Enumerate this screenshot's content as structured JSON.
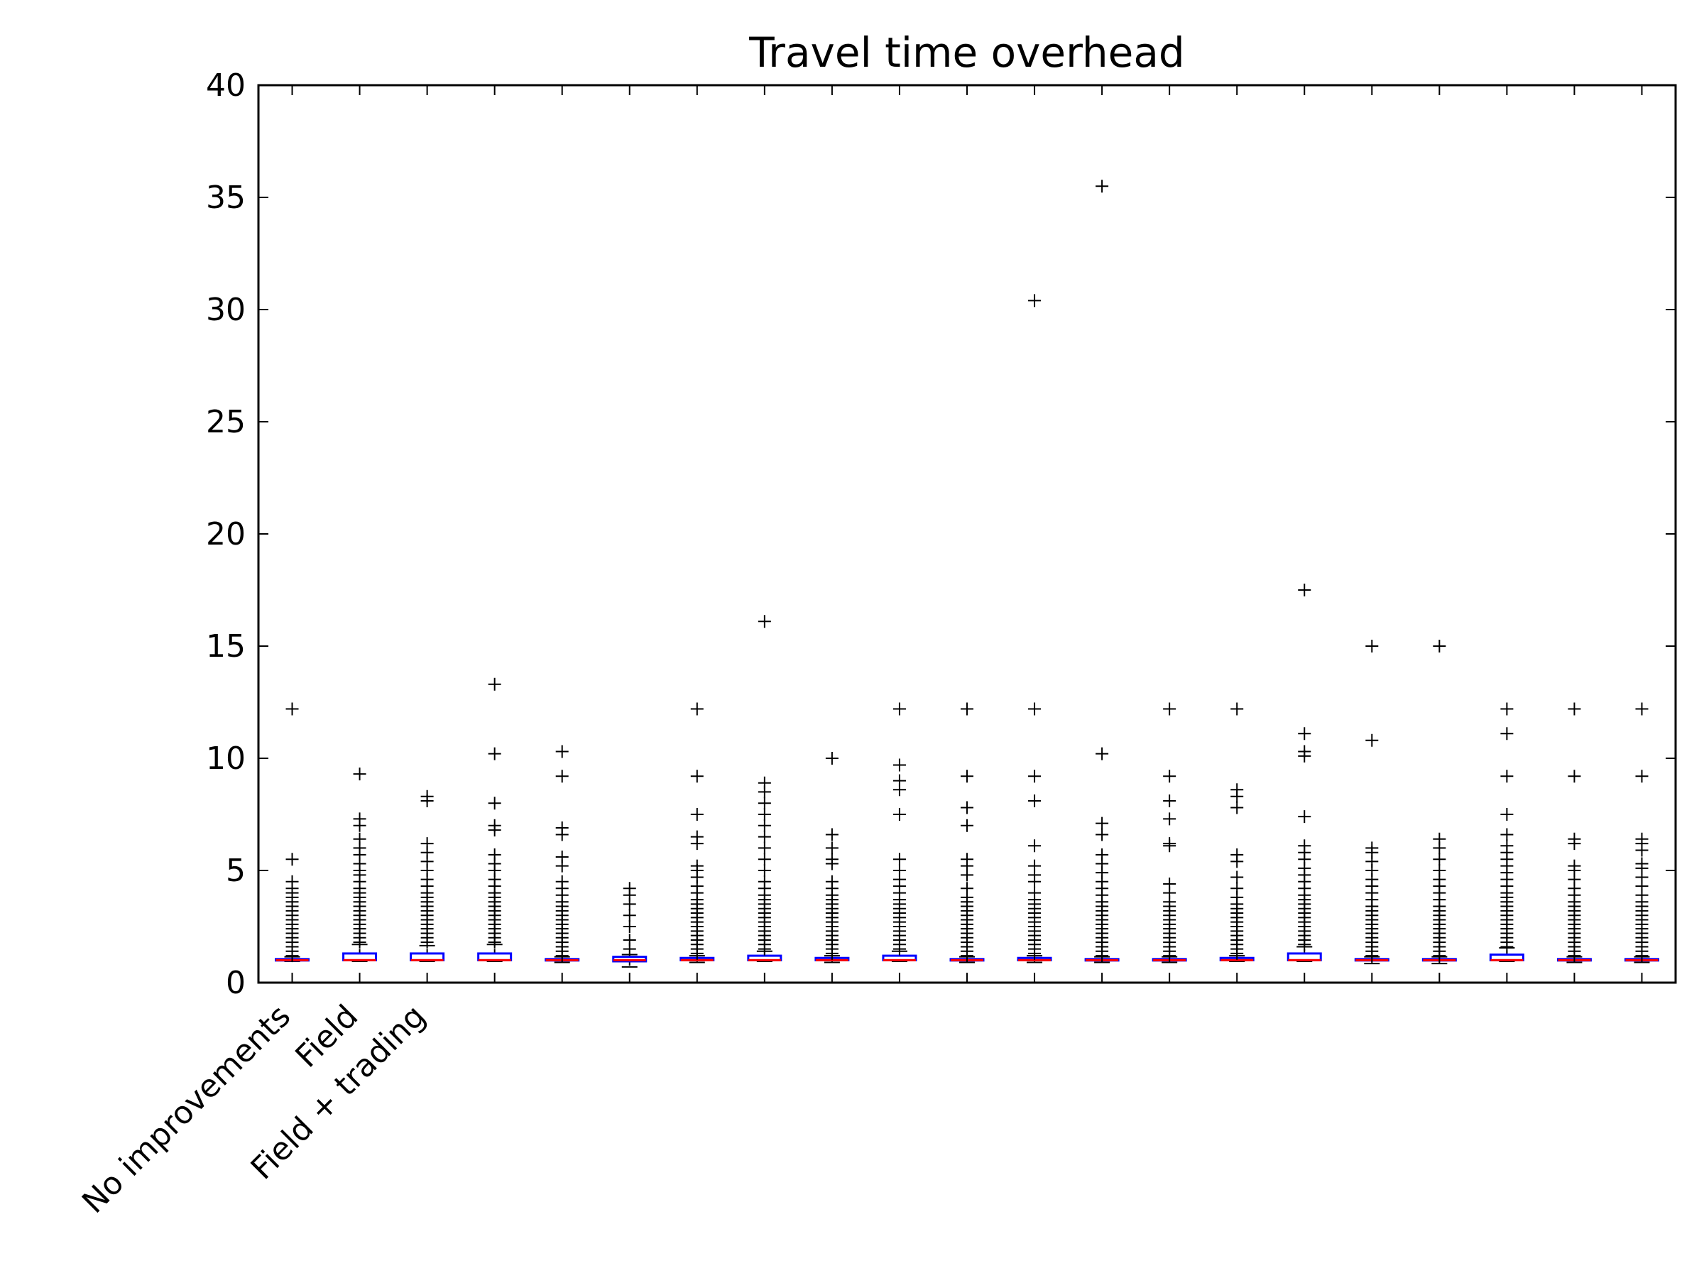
{
  "chart_data": {
    "type": "boxplot",
    "title": "Travel time overhead",
    "xlabel": "",
    "ylabel": "",
    "ylim": [
      0,
      40
    ],
    "yticks": [
      0,
      5,
      10,
      15,
      20,
      25,
      30,
      35,
      40
    ],
    "grid": false,
    "legend": "none",
    "colors": {
      "box": "#0000ff",
      "median": "#ff0000",
      "whisker": "#000000",
      "flier": "#000000",
      "frame": "#000000"
    },
    "categories": [
      "No improvements",
      "Field",
      "Field + trading",
      "",
      "",
      "",
      "",
      "",
      "",
      "",
      "",
      "",
      "",
      "",
      "",
      "",
      "",
      "",
      "",
      "",
      ""
    ],
    "series": [
      {
        "q1": 1.0,
        "median": 1.0,
        "q3": 1.05,
        "wlo": 0.95,
        "whi": 1.15,
        "fliers": [
          1.2,
          1.4,
          1.6,
          1.8,
          2.0,
          2.2,
          2.4,
          2.6,
          2.8,
          3.0,
          3.2,
          3.4,
          3.6,
          3.8,
          4.0,
          4.2,
          4.5,
          5.5,
          12.2
        ]
      },
      {
        "q1": 1.0,
        "median": 1.0,
        "q3": 1.3,
        "wlo": 0.95,
        "whi": 1.7,
        "fliers": [
          1.8,
          2.0,
          2.2,
          2.4,
          2.6,
          2.8,
          3.0,
          3.2,
          3.4,
          3.6,
          3.8,
          4.0,
          4.2,
          4.5,
          4.8,
          5.0,
          5.3,
          5.7,
          6.0,
          6.4,
          7.0,
          7.3,
          9.3
        ]
      },
      {
        "q1": 1.0,
        "median": 1.0,
        "q3": 1.3,
        "wlo": 0.95,
        "whi": 1.65,
        "fliers": [
          1.8,
          2.0,
          2.2,
          2.4,
          2.6,
          2.8,
          3.0,
          3.2,
          3.4,
          3.6,
          3.8,
          4.0,
          4.3,
          4.6,
          5.0,
          5.4,
          5.8,
          6.2,
          8.1,
          8.3
        ]
      },
      {
        "q1": 1.0,
        "median": 1.0,
        "q3": 1.3,
        "wlo": 0.95,
        "whi": 1.7,
        "fliers": [
          1.8,
          2.0,
          2.2,
          2.4,
          2.6,
          2.8,
          3.0,
          3.2,
          3.4,
          3.6,
          3.8,
          4.0,
          4.3,
          4.6,
          5.0,
          5.3,
          5.7,
          6.8,
          7.0,
          8.0,
          10.2,
          13.3
        ]
      },
      {
        "q1": 1.0,
        "median": 1.0,
        "q3": 1.05,
        "wlo": 0.9,
        "whi": 1.15,
        "fliers": [
          1.2,
          1.4,
          1.6,
          1.8,
          2.0,
          2.2,
          2.4,
          2.6,
          2.8,
          3.0,
          3.2,
          3.4,
          3.6,
          3.9,
          4.2,
          4.5,
          5.2,
          5.6,
          6.6,
          6.9,
          9.2,
          10.3
        ]
      },
      {
        "q1": 0.95,
        "median": 1.0,
        "q3": 1.15,
        "wlo": 0.7,
        "whi": 1.25,
        "fliers": [
          1.5,
          1.9,
          2.5,
          3.0,
          3.5,
          3.9,
          4.2
        ]
      },
      {
        "q1": 1.0,
        "median": 1.0,
        "q3": 1.1,
        "wlo": 0.9,
        "whi": 1.2,
        "fliers": [
          1.3,
          1.5,
          1.7,
          1.9,
          2.1,
          2.3,
          2.5,
          2.7,
          2.9,
          3.1,
          3.3,
          3.5,
          3.7,
          4.0,
          4.3,
          4.7,
          5.0,
          5.2,
          6.2,
          6.5,
          7.5,
          9.2,
          12.2
        ]
      },
      {
        "q1": 1.0,
        "median": 1.0,
        "q3": 1.2,
        "wlo": 0.95,
        "whi": 1.4,
        "fliers": [
          1.5,
          1.7,
          1.9,
          2.1,
          2.3,
          2.5,
          2.7,
          2.9,
          3.1,
          3.3,
          3.5,
          3.7,
          3.9,
          4.2,
          4.5,
          5.0,
          5.5,
          6.0,
          6.5,
          7.0,
          7.5,
          8.0,
          8.5,
          8.9,
          16.1
        ]
      },
      {
        "q1": 1.0,
        "median": 1.0,
        "q3": 1.1,
        "wlo": 0.9,
        "whi": 1.2,
        "fliers": [
          1.3,
          1.5,
          1.7,
          1.9,
          2.1,
          2.3,
          2.5,
          2.7,
          2.9,
          3.1,
          3.3,
          3.5,
          3.7,
          3.9,
          4.2,
          4.5,
          5.3,
          5.5,
          6.0,
          6.6,
          10.0
        ]
      },
      {
        "q1": 1.0,
        "median": 1.0,
        "q3": 1.2,
        "wlo": 0.95,
        "whi": 1.4,
        "fliers": [
          1.5,
          1.7,
          1.9,
          2.1,
          2.3,
          2.5,
          2.7,
          2.9,
          3.1,
          3.3,
          3.5,
          3.7,
          4.0,
          4.3,
          4.6,
          5.0,
          5.5,
          7.5,
          8.6,
          9.0,
          9.7,
          12.2
        ]
      },
      {
        "q1": 1.0,
        "median": 1.0,
        "q3": 1.05,
        "wlo": 0.9,
        "whi": 1.15,
        "fliers": [
          1.2,
          1.4,
          1.6,
          1.8,
          2.0,
          2.2,
          2.4,
          2.6,
          2.8,
          3.0,
          3.2,
          3.4,
          3.6,
          3.8,
          4.2,
          4.8,
          5.2,
          5.5,
          7.0,
          7.8,
          9.2,
          12.2
        ]
      },
      {
        "q1": 1.0,
        "median": 1.0,
        "q3": 1.1,
        "wlo": 0.9,
        "whi": 1.2,
        "fliers": [
          1.3,
          1.5,
          1.7,
          1.9,
          2.1,
          2.3,
          2.5,
          2.7,
          2.9,
          3.1,
          3.3,
          3.5,
          3.7,
          4.0,
          4.5,
          4.8,
          5.2,
          6.1,
          8.1,
          9.2,
          12.2,
          30.4
        ]
      },
      {
        "q1": 1.0,
        "median": 1.0,
        "q3": 1.05,
        "wlo": 0.9,
        "whi": 1.15,
        "fliers": [
          1.2,
          1.4,
          1.6,
          1.8,
          2.0,
          2.2,
          2.4,
          2.6,
          2.8,
          3.0,
          3.2,
          3.4,
          3.6,
          3.9,
          4.2,
          4.5,
          4.9,
          5.3,
          5.7,
          6.6,
          7.1,
          10.2,
          35.5
        ]
      },
      {
        "q1": 1.0,
        "median": 1.0,
        "q3": 1.05,
        "wlo": 0.9,
        "whi": 1.15,
        "fliers": [
          1.2,
          1.4,
          1.6,
          1.8,
          2.0,
          2.2,
          2.4,
          2.6,
          2.8,
          3.0,
          3.2,
          3.4,
          3.6,
          4.0,
          4.4,
          6.1,
          6.2,
          7.3,
          8.1,
          9.2,
          12.2
        ]
      },
      {
        "q1": 1.0,
        "median": 1.0,
        "q3": 1.1,
        "wlo": 0.95,
        "whi": 1.2,
        "fliers": [
          1.3,
          1.5,
          1.7,
          1.9,
          2.1,
          2.3,
          2.5,
          2.7,
          2.9,
          3.1,
          3.3,
          3.5,
          3.8,
          4.2,
          4.7,
          5.4,
          5.7,
          7.8,
          8.3,
          8.6,
          12.2
        ]
      },
      {
        "q1": 1.0,
        "median": 1.0,
        "q3": 1.3,
        "wlo": 0.95,
        "whi": 1.6,
        "fliers": [
          1.7,
          1.9,
          2.1,
          2.3,
          2.5,
          2.7,
          2.9,
          3.1,
          3.3,
          3.5,
          3.7,
          3.9,
          4.2,
          4.5,
          4.8,
          5.1,
          5.5,
          5.8,
          6.1,
          7.4,
          10.1,
          10.3,
          11.1,
          17.5
        ]
      },
      {
        "q1": 1.0,
        "median": 1.0,
        "q3": 1.05,
        "wlo": 0.85,
        "whi": 1.15,
        "fliers": [
          1.2,
          1.4,
          1.6,
          1.8,
          2.0,
          2.2,
          2.4,
          2.6,
          2.8,
          3.0,
          3.2,
          3.4,
          3.7,
          4.0,
          4.3,
          4.6,
          5.0,
          5.4,
          5.8,
          6.0,
          10.8,
          15.0
        ]
      },
      {
        "q1": 1.0,
        "median": 1.0,
        "q3": 1.05,
        "wlo": 0.85,
        "whi": 1.15,
        "fliers": [
          1.2,
          1.4,
          1.6,
          1.8,
          2.0,
          2.2,
          2.4,
          2.6,
          2.8,
          3.0,
          3.2,
          3.4,
          3.7,
          4.0,
          4.3,
          4.6,
          5.0,
          5.5,
          6.0,
          6.4,
          15.0
        ]
      },
      {
        "q1": 1.0,
        "median": 1.0,
        "q3": 1.25,
        "wlo": 0.95,
        "whi": 1.55,
        "fliers": [
          1.6,
          1.8,
          2.0,
          2.2,
          2.4,
          2.6,
          2.8,
          3.0,
          3.2,
          3.4,
          3.6,
          3.8,
          4.0,
          4.3,
          4.6,
          4.9,
          5.2,
          5.5,
          5.8,
          6.1,
          6.6,
          7.5,
          9.2,
          11.1,
          12.2
        ]
      },
      {
        "q1": 1.0,
        "median": 1.0,
        "q3": 1.05,
        "wlo": 0.9,
        "whi": 1.15,
        "fliers": [
          1.2,
          1.4,
          1.6,
          1.8,
          2.0,
          2.2,
          2.4,
          2.6,
          2.8,
          3.0,
          3.2,
          3.4,
          3.6,
          3.9,
          4.2,
          4.6,
          5.0,
          5.2,
          6.2,
          6.4,
          9.2,
          12.2
        ]
      },
      {
        "q1": 1.0,
        "median": 1.0,
        "q3": 1.05,
        "wlo": 0.9,
        "whi": 1.15,
        "fliers": [
          1.2,
          1.4,
          1.6,
          1.8,
          2.0,
          2.2,
          2.4,
          2.6,
          2.8,
          3.0,
          3.2,
          3.4,
          3.6,
          3.9,
          4.3,
          4.7,
          5.1,
          5.3,
          5.9,
          6.2,
          6.4,
          9.2,
          12.2
        ]
      }
    ]
  }
}
